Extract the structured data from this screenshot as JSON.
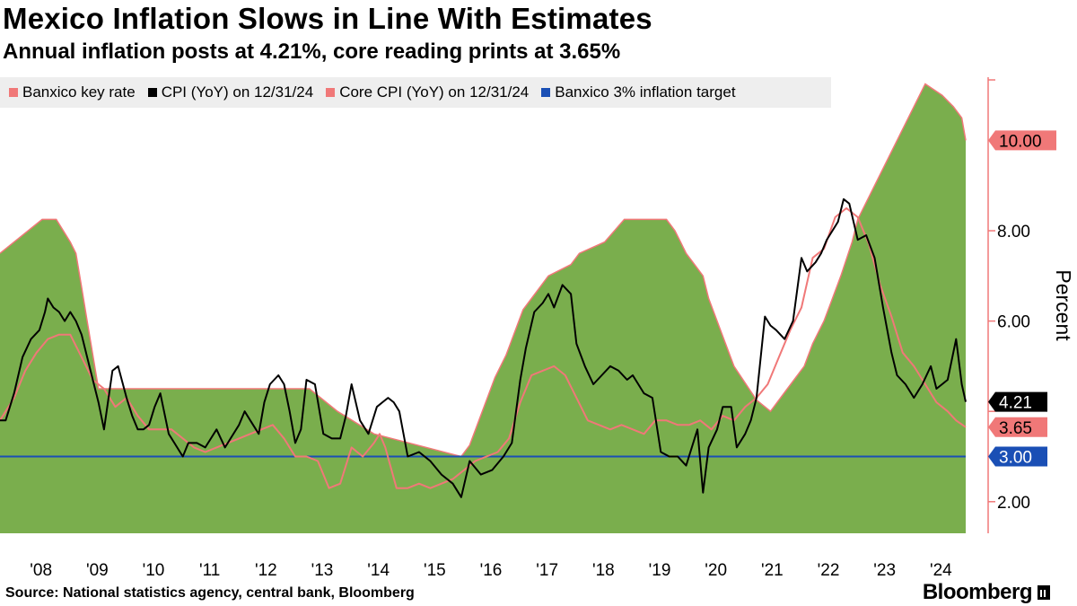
{
  "header": {
    "title": "Mexico Inflation Slows in Line With Estimates",
    "subtitle": "Annual inflation posts at 4.21%, core reading prints at 3.65%"
  },
  "footer": {
    "source": "Source: National statistics agency, central bank, Bloomberg",
    "logo": "Bloomberg"
  },
  "colors": {
    "area_fill": "#7aae4d",
    "area_line": "#f07878",
    "cpi": "#000000",
    "core": "#f07878",
    "target": "#1a4fb5",
    "axis": "#f07878"
  },
  "chart_data": {
    "type": "area",
    "title": "Mexico Inflation Slows in Line With Estimates",
    "ylabel": "Percent",
    "ylim": [
      1.3,
      11.4
    ],
    "y_ticks": [
      2,
      4,
      6,
      8,
      10
    ],
    "y_tick_labels": [
      "2.00",
      "",
      "6.00",
      "8.00",
      "10.00"
    ],
    "x_range": [
      2007.75,
      2024.92
    ],
    "x_ticks": [
      2008,
      2009,
      2010,
      2011,
      2012,
      2013,
      2014,
      2015,
      2016,
      2017,
      2018,
      2019,
      2020,
      2021,
      2022,
      2023,
      2024
    ],
    "x_tick_labels": [
      "'08",
      "'09",
      "'10",
      "'11",
      "'12",
      "'13",
      "'14",
      "'15",
      "'16",
      "'17",
      "'18",
      "'19",
      "'20",
      "'21",
      "'22",
      "'23",
      "'24"
    ],
    "legend": [
      {
        "name": "Banxico key rate",
        "color": "#f07878"
      },
      {
        "name": "CPI (YoY) on 12/31/24",
        "color": "#000000"
      },
      {
        "name": "Core CPI (YoY) on 12/31/24",
        "color": "#f07878"
      },
      {
        "name": "Banxico 3% inflation target",
        "color": "#1a4fb5"
      }
    ],
    "end_labels": [
      {
        "series": "Banxico key rate",
        "label": "10.00",
        "value": 10.0,
        "bg": "#f07878",
        "fg": "#000000"
      },
      {
        "series": "CPI (YoY)",
        "label": "4.21",
        "value": 4.21,
        "bg": "#000000",
        "fg": "#ffffff"
      },
      {
        "series": "Core CPI (YoY)",
        "label": "3.65",
        "value": 3.65,
        "bg": "#f07878",
        "fg": "#000000"
      },
      {
        "series": "Target",
        "label": "3.00",
        "value": 3.0,
        "bg": "#1a4fb5",
        "fg": "#ffffff"
      }
    ],
    "series": [
      {
        "name": "Banxico key rate",
        "kind": "step-area",
        "x": [
          2007.75,
          2008.5,
          2008.75,
          2009.0,
          2009.1,
          2009.2,
          2009.3,
          2009.4,
          2009.5,
          2013.25,
          2013.75,
          2014.4,
          2015.95,
          2016.1,
          2016.25,
          2016.4,
          2016.55,
          2016.75,
          2016.9,
          2017.05,
          2017.2,
          2017.35,
          2017.5,
          2017.9,
          2018.05,
          2018.5,
          2018.85,
          2019.6,
          2019.75,
          2019.85,
          2019.95,
          2020.1,
          2020.25,
          2020.35,
          2020.5,
          2020.65,
          2020.8,
          2021.2,
          2021.45,
          2021.6,
          2021.75,
          2021.9,
          2022.05,
          2022.2,
          2022.4,
          2022.55,
          2022.7,
          2022.9,
          2023.0,
          2024.2,
          2024.5,
          2024.7,
          2024.85,
          2024.92
        ],
        "y": [
          7.5,
          8.25,
          8.25,
          7.75,
          7.5,
          6.75,
          6.0,
          5.25,
          4.5,
          4.5,
          4.0,
          3.5,
          3.0,
          3.25,
          3.75,
          4.25,
          4.75,
          5.25,
          5.75,
          6.25,
          6.5,
          6.75,
          7.0,
          7.25,
          7.5,
          7.75,
          8.25,
          8.25,
          8.0,
          7.75,
          7.5,
          7.25,
          7.0,
          6.5,
          6.0,
          5.5,
          5.0,
          4.25,
          4.0,
          4.25,
          4.5,
          4.75,
          5.0,
          5.5,
          6.0,
          6.5,
          7.0,
          7.75,
          8.25,
          11.25,
          11.0,
          10.75,
          10.5,
          10.0
        ],
        "step_x": [
          2007.75,
          2008.5,
          2008.75,
          2009.0,
          2009.1,
          2009.2,
          2009.3,
          2009.4,
          2009.5,
          2013.25,
          2013.75,
          2014.4,
          2015.95,
          2016.1,
          2016.25,
          2016.4,
          2016.55,
          2016.75,
          2016.9,
          2017.05,
          2017.2,
          2017.35,
          2017.5,
          2017.9,
          2018.05,
          2018.5,
          2018.85,
          2019.6,
          2019.75,
          2019.85,
          2019.95,
          2020.1,
          2020.25,
          2020.35,
          2020.5,
          2020.65,
          2020.8,
          2021.2,
          2021.45,
          2021.6,
          2021.75,
          2021.9,
          2022.05,
          2022.2,
          2022.4,
          2022.55,
          2022.7,
          2022.9,
          2023.0,
          2024.2,
          2024.5,
          2024.7,
          2024.85,
          2024.92
        ],
        "step_y": [
          7.5,
          8.25,
          8.25,
          7.75,
          7.5,
          6.75,
          6.0,
          5.25,
          4.5,
          4.5,
          4.0,
          3.5,
          3.0,
          3.25,
          3.75,
          4.25,
          4.75,
          5.25,
          5.75,
          6.25,
          6.5,
          6.75,
          7.0,
          7.25,
          7.5,
          7.75,
          8.25,
          8.25,
          8.0,
          7.75,
          7.5,
          7.25,
          7.0,
          6.5,
          6.0,
          5.5,
          5.0,
          4.25,
          4.0,
          4.25,
          4.5,
          4.75,
          5.0,
          5.5,
          6.0,
          6.5,
          7.0,
          7.75,
          8.25,
          11.25,
          11.0,
          10.75,
          10.5,
          10.0
        ]
      },
      {
        "name": "CPI (YoY)",
        "kind": "line",
        "x": [
          2007.75,
          2007.85,
          2008.0,
          2008.15,
          2008.3,
          2008.45,
          2008.55,
          2008.6,
          2008.7,
          2008.8,
          2008.9,
          2009.0,
          2009.1,
          2009.2,
          2009.3,
          2009.4,
          2009.5,
          2009.6,
          2009.75,
          2009.85,
          2010.0,
          2010.1,
          2010.2,
          2010.3,
          2010.4,
          2010.5,
          2010.6,
          2010.75,
          2010.85,
          2011.0,
          2011.1,
          2011.25,
          2011.4,
          2011.5,
          2011.6,
          2011.75,
          2011.85,
          2012.0,
          2012.1,
          2012.2,
          2012.35,
          2012.45,
          2012.55,
          2012.7,
          2012.8,
          2012.9,
          2013.0,
          2013.1,
          2013.2,
          2013.35,
          2013.5,
          2013.65,
          2013.8,
          2013.9,
          2014.0,
          2014.15,
          2014.3,
          2014.45,
          2014.55,
          2014.65,
          2014.75,
          2014.85,
          2015.0,
          2015.2,
          2015.4,
          2015.6,
          2015.8,
          2015.95,
          2016.1,
          2016.3,
          2016.5,
          2016.7,
          2016.85,
          2017.0,
          2017.1,
          2017.25,
          2017.4,
          2017.5,
          2017.6,
          2017.75,
          2017.9,
          2018.0,
          2018.15,
          2018.3,
          2018.45,
          2018.6,
          2018.75,
          2018.9,
          2019.0,
          2019.2,
          2019.35,
          2019.5,
          2019.65,
          2019.8,
          2019.95,
          2020.05,
          2020.15,
          2020.25,
          2020.35,
          2020.5,
          2020.6,
          2020.75,
          2020.85,
          2021.0,
          2021.1,
          2021.2,
          2021.35,
          2021.45,
          2021.55,
          2021.7,
          2021.85,
          2022.0,
          2022.1,
          2022.25,
          2022.35,
          2022.45,
          2022.55,
          2022.65,
          2022.75,
          2022.85,
          2023.0,
          2023.15,
          2023.3,
          2023.45,
          2023.6,
          2023.7,
          2023.85,
          2024.0,
          2024.15,
          2024.3,
          2024.4,
          2024.5,
          2024.6,
          2024.75,
          2024.85,
          2024.92
        ],
        "y": [
          3.8,
          3.8,
          4.4,
          5.2,
          5.6,
          5.8,
          6.2,
          6.5,
          6.3,
          6.2,
          6.0,
          6.2,
          6.0,
          5.7,
          5.2,
          4.7,
          4.2,
          3.6,
          4.9,
          5.0,
          4.3,
          3.9,
          3.6,
          3.6,
          3.7,
          4.1,
          4.4,
          3.5,
          3.3,
          3.0,
          3.3,
          3.3,
          3.2,
          3.4,
          3.6,
          3.2,
          3.4,
          3.7,
          4.0,
          3.8,
          3.5,
          4.2,
          4.6,
          4.8,
          4.6,
          4.0,
          3.3,
          3.6,
          4.7,
          4.6,
          3.5,
          3.4,
          3.4,
          3.9,
          4.6,
          3.8,
          3.5,
          4.1,
          4.2,
          4.3,
          4.2,
          4.0,
          3.0,
          3.1,
          2.9,
          2.6,
          2.4,
          2.1,
          2.9,
          2.6,
          2.7,
          3.0,
          3.3,
          4.7,
          5.4,
          6.2,
          6.4,
          6.6,
          6.3,
          6.8,
          6.6,
          5.5,
          5.0,
          4.6,
          4.8,
          5.0,
          4.9,
          4.7,
          4.8,
          4.4,
          4.3,
          3.1,
          3.0,
          3.0,
          2.8,
          3.2,
          3.6,
          2.2,
          3.2,
          3.6,
          4.1,
          4.1,
          3.2,
          3.5,
          3.8,
          4.3,
          6.1,
          5.9,
          5.8,
          5.6,
          6.0,
          7.4,
          7.1,
          7.3,
          7.5,
          7.8,
          8.0,
          8.2,
          8.7,
          8.6,
          7.8,
          7.9,
          7.4,
          6.3,
          5.3,
          4.8,
          4.6,
          4.3,
          4.6,
          5.0,
          4.5,
          4.6,
          4.7,
          5.6,
          4.6,
          4.21
        ]
      },
      {
        "name": "Core CPI (YoY)",
        "kind": "line",
        "x": [
          2007.75,
          2008.0,
          2008.2,
          2008.4,
          2008.6,
          2008.8,
          2009.0,
          2009.2,
          2009.4,
          2009.6,
          2009.8,
          2010.0,
          2010.2,
          2010.4,
          2010.6,
          2010.8,
          2011.0,
          2011.2,
          2011.4,
          2011.6,
          2011.8,
          2012.0,
          2012.2,
          2012.4,
          2012.6,
          2012.8,
          2013.0,
          2013.2,
          2013.4,
          2013.6,
          2013.8,
          2014.0,
          2014.2,
          2014.4,
          2014.5,
          2014.6,
          2014.8,
          2015.0,
          2015.2,
          2015.4,
          2015.6,
          2015.8,
          2016.0,
          2016.2,
          2016.4,
          2016.6,
          2016.8,
          2017.0,
          2017.2,
          2017.4,
          2017.6,
          2017.8,
          2018.0,
          2018.2,
          2018.4,
          2018.6,
          2018.8,
          2019.0,
          2019.2,
          2019.4,
          2019.6,
          2019.8,
          2020.0,
          2020.2,
          2020.4,
          2020.6,
          2020.8,
          2021.0,
          2021.2,
          2021.4,
          2021.6,
          2021.8,
          2022.0,
          2022.2,
          2022.4,
          2022.6,
          2022.8,
          2023.0,
          2023.2,
          2023.4,
          2023.6,
          2023.8,
          2024.0,
          2024.2,
          2024.4,
          2024.6,
          2024.75,
          2024.92
        ],
        "y": [
          3.8,
          4.3,
          4.9,
          5.3,
          5.6,
          5.7,
          5.7,
          5.2,
          4.7,
          4.5,
          4.1,
          4.3,
          3.9,
          3.6,
          3.6,
          3.6,
          3.4,
          3.2,
          3.1,
          3.2,
          3.3,
          3.4,
          3.5,
          3.6,
          3.7,
          3.4,
          3.0,
          3.0,
          2.9,
          2.3,
          2.4,
          3.2,
          3.0,
          3.3,
          3.5,
          3.2,
          2.3,
          2.3,
          2.4,
          2.3,
          2.4,
          2.5,
          2.7,
          2.9,
          3.0,
          3.1,
          3.4,
          4.2,
          4.8,
          4.9,
          5.0,
          4.8,
          4.3,
          3.8,
          3.7,
          3.6,
          3.7,
          3.6,
          3.5,
          3.8,
          3.8,
          3.7,
          3.7,
          3.8,
          3.6,
          3.9,
          3.8,
          4.1,
          4.3,
          4.6,
          5.2,
          5.8,
          6.3,
          7.4,
          7.6,
          8.3,
          8.5,
          8.3,
          7.7,
          6.8,
          6.1,
          5.3,
          5.0,
          4.6,
          4.2,
          4.0,
          3.8,
          3.65
        ]
      },
      {
        "name": "Banxico 3% inflation target",
        "kind": "hline",
        "value": 3.0
      }
    ]
  }
}
